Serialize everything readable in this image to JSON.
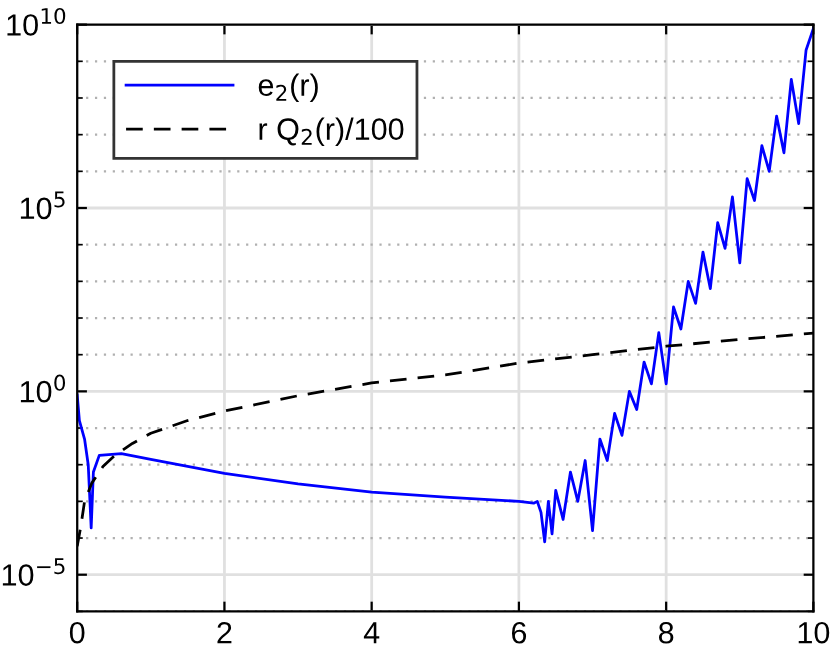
{
  "chart_data": {
    "type": "line",
    "log": "y",
    "grid": true,
    "legend": "top left",
    "marker": "none",
    "xlim": [
      0,
      10
    ],
    "xticks": [
      0,
      2,
      4,
      6,
      8,
      10
    ],
    "ylim": [
      1e-06,
      10000000000.0
    ],
    "yticks": [
      {
        "value": 1e-05,
        "label": "10$^{−5}$"
      },
      {
        "value": 1,
        "label": "10$^{0}$"
      },
      {
        "value": 100000.0,
        "label": "10$^{5}$"
      },
      {
        "value": 10000000000.0,
        "label": "10$^{10}$"
      }
    ],
    "series": [
      {
        "name": "e$_{2}$(r)",
        "color": "#0000ff",
        "line_style": "solid",
        "x": [
          0,
          0.03,
          0.1,
          0.15,
          0.19,
          0.22,
          0.3,
          0.6,
          1,
          2,
          3,
          4,
          5,
          6,
          6.2,
          6.25,
          6.3,
          6.35,
          6.4,
          6.45,
          6.5,
          6.6,
          6.7,
          6.8,
          6.9,
          7.0,
          7.1,
          7.2,
          7.3,
          7.4,
          7.5,
          7.6,
          7.7,
          7.8,
          7.9,
          8.0,
          8.1,
          8.2,
          8.3,
          8.4,
          8.5,
          8.6,
          8.7,
          8.8,
          8.9,
          9.0,
          9.1,
          9.2,
          9.3,
          9.4,
          9.5,
          9.6,
          9.7,
          9.8,
          9.9,
          10.0
        ],
        "values": [
          0.8,
          0.16,
          0.05,
          0.01,
          0.00019,
          0.0063,
          0.018,
          0.02,
          0.014,
          0.0058,
          0.003,
          0.0018,
          0.0013,
          0.001,
          0.00089,
          0.001,
          0.0005,
          7.9e-05,
          0.001,
          0.00013,
          0.002,
          0.00032,
          0.0063,
          0.001,
          0.013,
          0.00016,
          0.05,
          0.013,
          0.25,
          0.063,
          1,
          0.32,
          6.3,
          1.6,
          40,
          1.6,
          200,
          50,
          1000,
          250,
          6300,
          630,
          40000.0,
          7900.0,
          200000.0,
          3200.0,
          630000.0,
          160000.0,
          5000000.0,
          1000000.0,
          32000000.0,
          3200000.0,
          320000000.0,
          20000000.0,
          2000000000.0,
          7900000000.0
        ]
      },
      {
        "name": "r Q$_{2}$(r)/100",
        "color": "#000000",
        "line_style": "dashed",
        "x": [
          0,
          0.05,
          0.1,
          0.2,
          0.35,
          0.5,
          0.75,
          1,
          1.5,
          2,
          3,
          4,
          5,
          6,
          7,
          8,
          9,
          10
        ],
        "values": [
          6e-05,
          0.00021,
          0.001,
          0.0032,
          0.0089,
          0.017,
          0.038,
          0.072,
          0.16,
          0.29,
          0.76,
          1.7,
          2.8,
          5.9,
          10,
          17,
          26,
          39
        ]
      }
    ]
  }
}
